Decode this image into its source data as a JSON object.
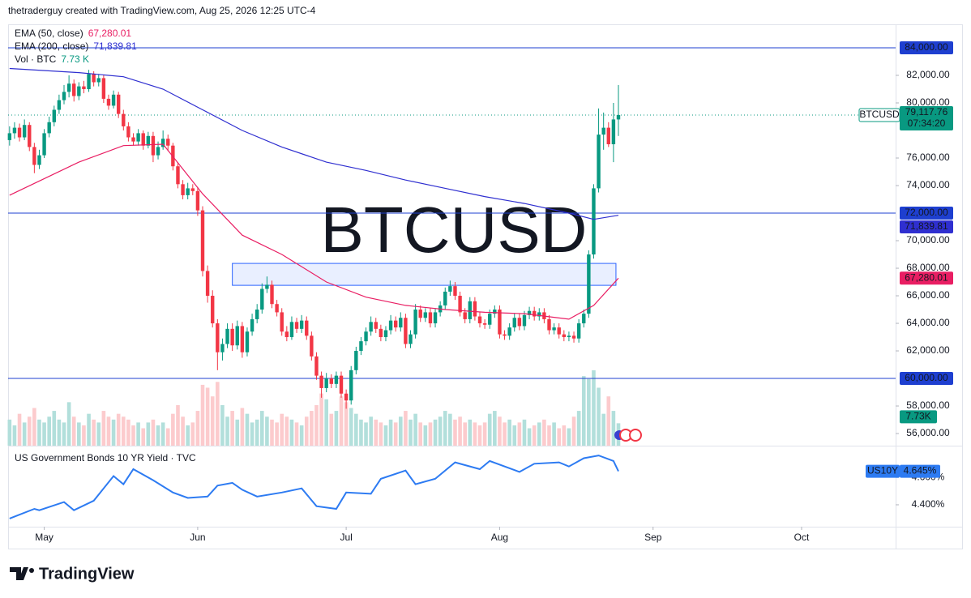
{
  "header": "thetraderguy created with TradingView.com, Aug 25, 2026 12:25 UTC-4",
  "logo": "TradingView",
  "chart_data": [
    {
      "type": "candlestick",
      "symbol": "BTCUSD",
      "up_color": "#089981",
      "down_color": "#f23645",
      "volume_up_color": "#b2dfdb",
      "volume_down_color": "#fccbcd",
      "level_color": "#1e3fd0",
      "zone_color": "#2962ff",
      "xlim": [
        -0.3,
        179
      ],
      "xticks": [
        {
          "value": 7,
          "label": "May"
        },
        {
          "value": 38,
          "label": "Jun"
        },
        {
          "value": 68,
          "label": "Jul"
        },
        {
          "value": 99,
          "label": "Aug"
        },
        {
          "value": 130,
          "label": "Sep"
        },
        {
          "value": 160,
          "label": "Oct"
        }
      ],
      "ylim": [
        55120,
        85706
      ],
      "yticks": [
        {
          "value": 56000,
          "label": "56,000.00"
        },
        {
          "value": 58000,
          "label": "58,000.00"
        },
        {
          "value": 62000,
          "label": "62,000.00"
        },
        {
          "value": 64000,
          "label": "64,000.00"
        },
        {
          "value": 66000,
          "label": "66,000.00"
        },
        {
          "value": 68000,
          "label": "68,000.00"
        },
        {
          "value": 70000,
          "label": "70,000.00"
        },
        {
          "value": 74000,
          "label": "74,000.00"
        },
        {
          "value": 76000,
          "label": "76,000.00"
        },
        {
          "value": 80000,
          "label": "80,000.00"
        },
        {
          "value": 82000,
          "label": "82,000.00"
        }
      ],
      "levels": [
        {
          "value": 84000,
          "label": "84,000.00"
        },
        {
          "value": 72000,
          "label": "72,000.00"
        },
        {
          "value": 60000,
          "label": "60,000.00"
        }
      ],
      "zone": {
        "x": [
          45,
          122.5
        ],
        "y": [
          66760,
          68350
        ]
      },
      "last": {
        "label": "79,117.76",
        "countdown": "07:34:20"
      },
      "ohlc": [
        [
          77300,
          78300,
          76900,
          77800
        ],
        [
          77800,
          78600,
          77400,
          78200
        ],
        [
          78200,
          78500,
          77200,
          77500
        ],
        [
          77500,
          78800,
          77300,
          78400
        ],
        [
          78400,
          78600,
          76500,
          76800
        ],
        [
          76800,
          77100,
          74900,
          75500
        ],
        [
          75500,
          76600,
          75200,
          76200
        ],
        [
          76200,
          78100,
          76000,
          77800
        ],
        [
          77800,
          79000,
          77500,
          78600
        ],
        [
          78600,
          79800,
          78300,
          79500
        ],
        [
          79500,
          80600,
          79200,
          80200
        ],
        [
          80200,
          81300,
          79900,
          80800
        ],
        [
          80800,
          82000,
          80400,
          81400
        ],
        [
          81400,
          81700,
          80100,
          80500
        ],
        [
          80500,
          81500,
          80200,
          81200
        ],
        [
          81200,
          81600,
          80700,
          81000
        ],
        [
          81000,
          82400,
          80800,
          82100
        ],
        [
          82100,
          82300,
          81200,
          81500
        ],
        [
          81500,
          82100,
          81200,
          81800
        ],
        [
          81800,
          82000,
          80000,
          80300
        ],
        [
          80300,
          80600,
          79500,
          79800
        ],
        [
          79800,
          80900,
          79600,
          80600
        ],
        [
          80600,
          80800,
          78900,
          79200
        ],
        [
          79200,
          79500,
          78000,
          78300
        ],
        [
          78300,
          78600,
          77200,
          77500
        ],
        [
          77500,
          77800,
          76900,
          77200
        ],
        [
          77200,
          78100,
          76900,
          77800
        ],
        [
          77800,
          78000,
          76600,
          76900
        ],
        [
          76900,
          77900,
          76700,
          77600
        ],
        [
          77600,
          77900,
          75700,
          76200
        ],
        [
          76200,
          77200,
          75900,
          76800
        ],
        [
          76800,
          78000,
          76600,
          77400
        ],
        [
          77400,
          77700,
          76500,
          76900
        ],
        [
          76900,
          77100,
          75100,
          75400
        ],
        [
          75400,
          75700,
          73800,
          74100
        ],
        [
          74100,
          74400,
          73000,
          73300
        ],
        [
          73300,
          74200,
          73000,
          73800
        ],
        [
          73800,
          74100,
          73300,
          73600
        ],
        [
          73600,
          73900,
          71800,
          72200
        ],
        [
          72200,
          72500,
          67400,
          67800
        ],
        [
          67800,
          68200,
          65500,
          66000
        ],
        [
          66000,
          66400,
          63700,
          64000
        ],
        [
          64000,
          64300,
          60600,
          61900
        ],
        [
          61900,
          62900,
          61300,
          62500
        ],
        [
          62500,
          64000,
          62200,
          63600
        ],
        [
          63600,
          64000,
          62000,
          62400
        ],
        [
          62400,
          64200,
          62100,
          63800
        ],
        [
          63800,
          64100,
          61500,
          61900
        ],
        [
          61900,
          63700,
          61600,
          63400
        ],
        [
          63400,
          64700,
          63100,
          64300
        ],
        [
          64300,
          65400,
          64000,
          65000
        ],
        [
          65000,
          66900,
          64700,
          66500
        ],
        [
          66500,
          67400,
          66200,
          66800
        ],
        [
          66800,
          67100,
          65100,
          65400
        ],
        [
          65400,
          65700,
          64500,
          64800
        ],
        [
          64800,
          65100,
          63100,
          63400
        ],
        [
          63400,
          63800,
          62700,
          63000
        ],
        [
          63000,
          64500,
          62800,
          64100
        ],
        [
          64100,
          64400,
          63300,
          63600
        ],
        [
          63600,
          64600,
          63300,
          64200
        ],
        [
          64200,
          64500,
          62800,
          63100
        ],
        [
          63100,
          63400,
          61300,
          61600
        ],
        [
          61600,
          61900,
          59900,
          60200
        ],
        [
          60200,
          60500,
          58600,
          59300
        ],
        [
          59300,
          60400,
          59000,
          60000
        ],
        [
          60000,
          60300,
          59300,
          59600
        ],
        [
          59600,
          60500,
          59300,
          60200
        ],
        [
          60200,
          60500,
          58600,
          58900
        ],
        [
          58900,
          59200,
          57800,
          58400
        ],
        [
          58400,
          60900,
          58100,
          60600
        ],
        [
          60600,
          62300,
          60300,
          62000
        ],
        [
          62000,
          63000,
          61700,
          62700
        ],
        [
          62700,
          63700,
          62400,
          63400
        ],
        [
          63400,
          64500,
          63100,
          64100
        ],
        [
          64100,
          64400,
          63300,
          63600
        ],
        [
          63600,
          63900,
          62700,
          63000
        ],
        [
          63000,
          63800,
          62700,
          63500
        ],
        [
          63500,
          64600,
          63200,
          64200
        ],
        [
          64200,
          64500,
          63400,
          63700
        ],
        [
          63700,
          64800,
          63400,
          64400
        ],
        [
          64400,
          64700,
          62200,
          62500
        ],
        [
          62500,
          63500,
          62200,
          63200
        ],
        [
          63200,
          65400,
          62900,
          65000
        ],
        [
          65000,
          65300,
          64100,
          64400
        ],
        [
          64400,
          65100,
          64100,
          64800
        ],
        [
          64800,
          65100,
          63700,
          64000
        ],
        [
          64000,
          65100,
          63700,
          64800
        ],
        [
          64800,
          65600,
          64500,
          65300
        ],
        [
          65300,
          66600,
          65000,
          66300
        ],
        [
          66300,
          67100,
          66000,
          66700
        ],
        [
          66700,
          67000,
          65700,
          66000
        ],
        [
          66000,
          66300,
          64500,
          64800
        ],
        [
          64800,
          65100,
          64000,
          64300
        ],
        [
          64300,
          65900,
          64000,
          65600
        ],
        [
          65600,
          65900,
          64200,
          64500
        ],
        [
          64500,
          64800,
          63700,
          64000
        ],
        [
          64000,
          64300,
          63600,
          63900
        ],
        [
          63900,
          65000,
          63600,
          64700
        ],
        [
          64700,
          65300,
          64400,
          65000
        ],
        [
          65000,
          65300,
          62900,
          63200
        ],
        [
          63200,
          63500,
          62800,
          63100
        ],
        [
          63100,
          64000,
          62800,
          63700
        ],
        [
          63700,
          64700,
          63400,
          64400
        ],
        [
          64400,
          64700,
          63500,
          63800
        ],
        [
          63800,
          64900,
          63500,
          64600
        ],
        [
          64600,
          65200,
          64300,
          64900
        ],
        [
          64900,
          65200,
          64200,
          64500
        ],
        [
          64500,
          65100,
          64200,
          64800
        ],
        [
          64800,
          65100,
          64000,
          64300
        ],
        [
          64300,
          64600,
          63200,
          63500
        ],
        [
          63500,
          64000,
          63200,
          63700
        ],
        [
          63700,
          64000,
          62900,
          63200
        ],
        [
          63200,
          63500,
          62700,
          63000
        ],
        [
          63000,
          63400,
          62700,
          63100
        ],
        [
          63100,
          63400,
          62600,
          62900
        ],
        [
          62900,
          64300,
          62600,
          64000
        ],
        [
          64000,
          65000,
          63700,
          64700
        ],
        [
          64700,
          69300,
          64400,
          69000
        ],
        [
          69000,
          74100,
          68700,
          73800
        ],
        [
          73800,
          79600,
          73500,
          77700
        ],
        [
          77700,
          79300,
          76600,
          78200
        ],
        [
          78200,
          78600,
          76800,
          77000
        ],
        [
          77000,
          80000,
          75700,
          78800
        ],
        [
          78800,
          81300,
          77600,
          79117.76
        ]
      ],
      "volume": [
        9000,
        7000,
        11000,
        8000,
        10000,
        13000,
        9000,
        8000,
        10000,
        12000,
        9000,
        8000,
        15000,
        10000,
        8000,
        7000,
        11000,
        9000,
        8000,
        12000,
        10000,
        9000,
        11000,
        10000,
        9000,
        7000,
        8000,
        6000,
        8000,
        9000,
        7000,
        8000,
        6000,
        11000,
        14000,
        10000,
        7000,
        8000,
        12000,
        21000,
        20000,
        17000,
        22000,
        14000,
        10000,
        12000,
        9000,
        13000,
        11000,
        8000,
        9000,
        12000,
        10000,
        9000,
        8000,
        11000,
        10000,
        9000,
        8000,
        7000,
        10000,
        12000,
        14000,
        18000,
        16000,
        11000,
        12000,
        17000,
        15000,
        13000,
        11000,
        9000,
        8000,
        10000,
        9000,
        8000,
        7000,
        9000,
        8000,
        10000,
        12000,
        9000,
        11000,
        8000,
        7000,
        8000,
        9000,
        10000,
        12000,
        11000,
        9000,
        10000,
        8000,
        9000,
        8000,
        7000,
        8000,
        11000,
        12000,
        10000,
        8000,
        9000,
        7000,
        8000,
        9000,
        6000,
        7000,
        8000,
        9000,
        7000,
        8000,
        6000,
        7000,
        6000,
        10000,
        12000,
        24000,
        23000,
        26000,
        20000,
        11000,
        17000,
        12000,
        7730
      ],
      "volume_legend": {
        "name": "Vol · BTC",
        "label": "7.73 K",
        "axis_label": "7.73K"
      },
      "series": [
        {
          "name": "EMA (50, close)",
          "color": "#e91e63",
          "value_label": "67,280.01",
          "x": [
            0,
            14,
            23,
            31,
            39,
            47,
            55,
            64,
            72,
            80,
            88,
            96,
            104,
            113,
            118,
            123
          ],
          "values": [
            73300,
            75700,
            76900,
            77000,
            73400,
            70400,
            69000,
            67000,
            65900,
            65300,
            65000,
            64800,
            64700,
            64300,
            65300,
            67280.01
          ]
        },
        {
          "name": "EMA (200, close)",
          "color": "#2f2fd0",
          "value_label": "71,839.81",
          "x": [
            0,
            14,
            23,
            31,
            39,
            47,
            55,
            64,
            72,
            80,
            88,
            96,
            104,
            113,
            118,
            123
          ],
          "values": [
            82500,
            82200,
            81900,
            81000,
            79500,
            78000,
            76800,
            75700,
            75100,
            74400,
            73800,
            73200,
            72700,
            72000,
            71550,
            71839.81
          ]
        }
      ]
    },
    {
      "type": "line",
      "title": "US Government Bonds 10 YR Yield · TVC",
      "symbol": "US10Y",
      "color": "#2d7bf2",
      "ylim": [
        4.24,
        4.82
      ],
      "yticks": [
        {
          "value": 4.4,
          "label": "4.400%"
        },
        {
          "value": 4.6,
          "label": "4.600%"
        }
      ],
      "x": [
        0,
        5,
        6,
        11,
        13,
        17,
        21,
        23,
        25,
        29,
        33,
        36,
        40,
        42,
        45,
        47,
        50,
        55,
        59,
        62,
        66,
        68,
        73,
        75,
        80,
        82,
        86,
        90,
        95,
        97,
        103,
        106,
        111,
        113,
        116,
        119,
        122,
        123
      ],
      "values": [
        4.3,
        4.37,
        4.36,
        4.42,
        4.36,
        4.43,
        4.61,
        4.55,
        4.66,
        4.58,
        4.49,
        4.45,
        4.46,
        4.54,
        4.56,
        4.51,
        4.46,
        4.49,
        4.52,
        4.39,
        4.37,
        4.49,
        4.48,
        4.59,
        4.65,
        4.55,
        4.59,
        4.71,
        4.66,
        4.72,
        4.64,
        4.7,
        4.71,
        4.68,
        4.74,
        4.76,
        4.72,
        4.645
      ],
      "last_label": "4.645%"
    }
  ]
}
